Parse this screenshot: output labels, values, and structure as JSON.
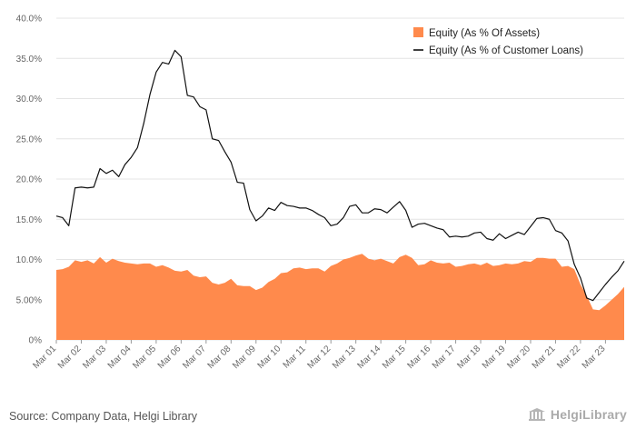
{
  "footer": {
    "source": "Source: Company Data, Helgi Library",
    "logo_text": "HelgiLibrary"
  },
  "colors": {
    "equity_assets": "#ff8a4c",
    "equity_loans": "#111111",
    "grid": "#e4e4e4"
  },
  "chart_data": {
    "type": "area",
    "title": "",
    "xlabel": "",
    "ylabel": "",
    "ylim": [
      0,
      40
    ],
    "y_ticks": [
      "0%",
      "5.00%",
      "10.0%",
      "15.0%",
      "20.0%",
      "25.0%",
      "30.0%",
      "35.0%",
      "40.0%"
    ],
    "x_tick_labels": [
      "Mar 01",
      "Mar 02",
      "Mar 03",
      "Mar 04",
      "Mar 05",
      "Mar 06",
      "Mar 07",
      "Mar 08",
      "Mar 09",
      "Mar 10",
      "Mar 11",
      "Mar 12",
      "Mar 13",
      "Mar 14",
      "Mar 15",
      "Mar 16",
      "Mar 17",
      "Mar 18",
      "Mar 19",
      "Mar 20",
      "Mar 21",
      "Mar 22",
      "Mar 23"
    ],
    "legend_position": "top-right",
    "grid": true,
    "x_start": "Mar 01",
    "x_frequency": "quarterly",
    "series": [
      {
        "name": "Equity (As % Of Assets)",
        "kind": "area",
        "values": [
          8.7,
          8.8,
          9.1,
          9.9,
          9.7,
          9.9,
          9.5,
          10.3,
          9.6,
          10.1,
          9.8,
          9.6,
          9.5,
          9.4,
          9.5,
          9.5,
          9.1,
          9.3,
          9.0,
          8.6,
          8.5,
          8.7,
          8.0,
          7.8,
          7.9,
          7.1,
          6.9,
          7.1,
          7.6,
          6.8,
          6.7,
          6.7,
          6.2,
          6.5,
          7.2,
          7.6,
          8.3,
          8.4,
          8.9,
          9.0,
          8.8,
          8.9,
          8.9,
          8.5,
          9.2,
          9.5,
          10.0,
          10.2,
          10.5,
          10.7,
          10.1,
          9.9,
          10.1,
          9.8,
          9.5,
          10.3,
          10.6,
          10.2,
          9.3,
          9.4,
          9.9,
          9.6,
          9.5,
          9.6,
          9.1,
          9.2,
          9.4,
          9.5,
          9.3,
          9.6,
          9.2,
          9.3,
          9.5,
          9.4,
          9.5,
          9.8,
          9.7,
          10.2,
          10.2,
          10.1,
          10.1,
          9.1,
          9.2,
          8.8,
          6.9,
          5.5,
          3.8,
          3.7,
          4.3,
          5.0,
          5.7,
          6.6
        ]
      },
      {
        "name": "Equity (As % of Customer Loans)",
        "kind": "line",
        "values": [
          15.4,
          15.2,
          14.2,
          18.9,
          19.0,
          18.9,
          19.0,
          21.3,
          20.7,
          21.1,
          20.3,
          21.8,
          22.7,
          23.9,
          26.9,
          30.5,
          33.3,
          34.5,
          34.3,
          36.0,
          35.2,
          30.4,
          30.2,
          29.0,
          28.6,
          25.0,
          24.8,
          23.4,
          22.1,
          19.6,
          19.5,
          16.2,
          14.8,
          15.4,
          16.4,
          16.1,
          17.1,
          16.7,
          16.6,
          16.4,
          16.4,
          16.1,
          15.6,
          15.2,
          14.2,
          14.4,
          15.2,
          16.6,
          16.8,
          15.8,
          15.8,
          16.3,
          16.2,
          15.8,
          16.5,
          17.2,
          16.1,
          14.0,
          14.4,
          14.5,
          14.2,
          13.9,
          13.7,
          12.8,
          12.9,
          12.8,
          12.9,
          13.3,
          13.4,
          12.6,
          12.4,
          13.2,
          12.6,
          13.0,
          13.4,
          13.1,
          14.1,
          15.1,
          15.2,
          15.0,
          13.6,
          13.3,
          12.3,
          9.4,
          7.7,
          5.2,
          4.9,
          5.9,
          6.9,
          7.8,
          8.6,
          9.8
        ]
      }
    ]
  }
}
